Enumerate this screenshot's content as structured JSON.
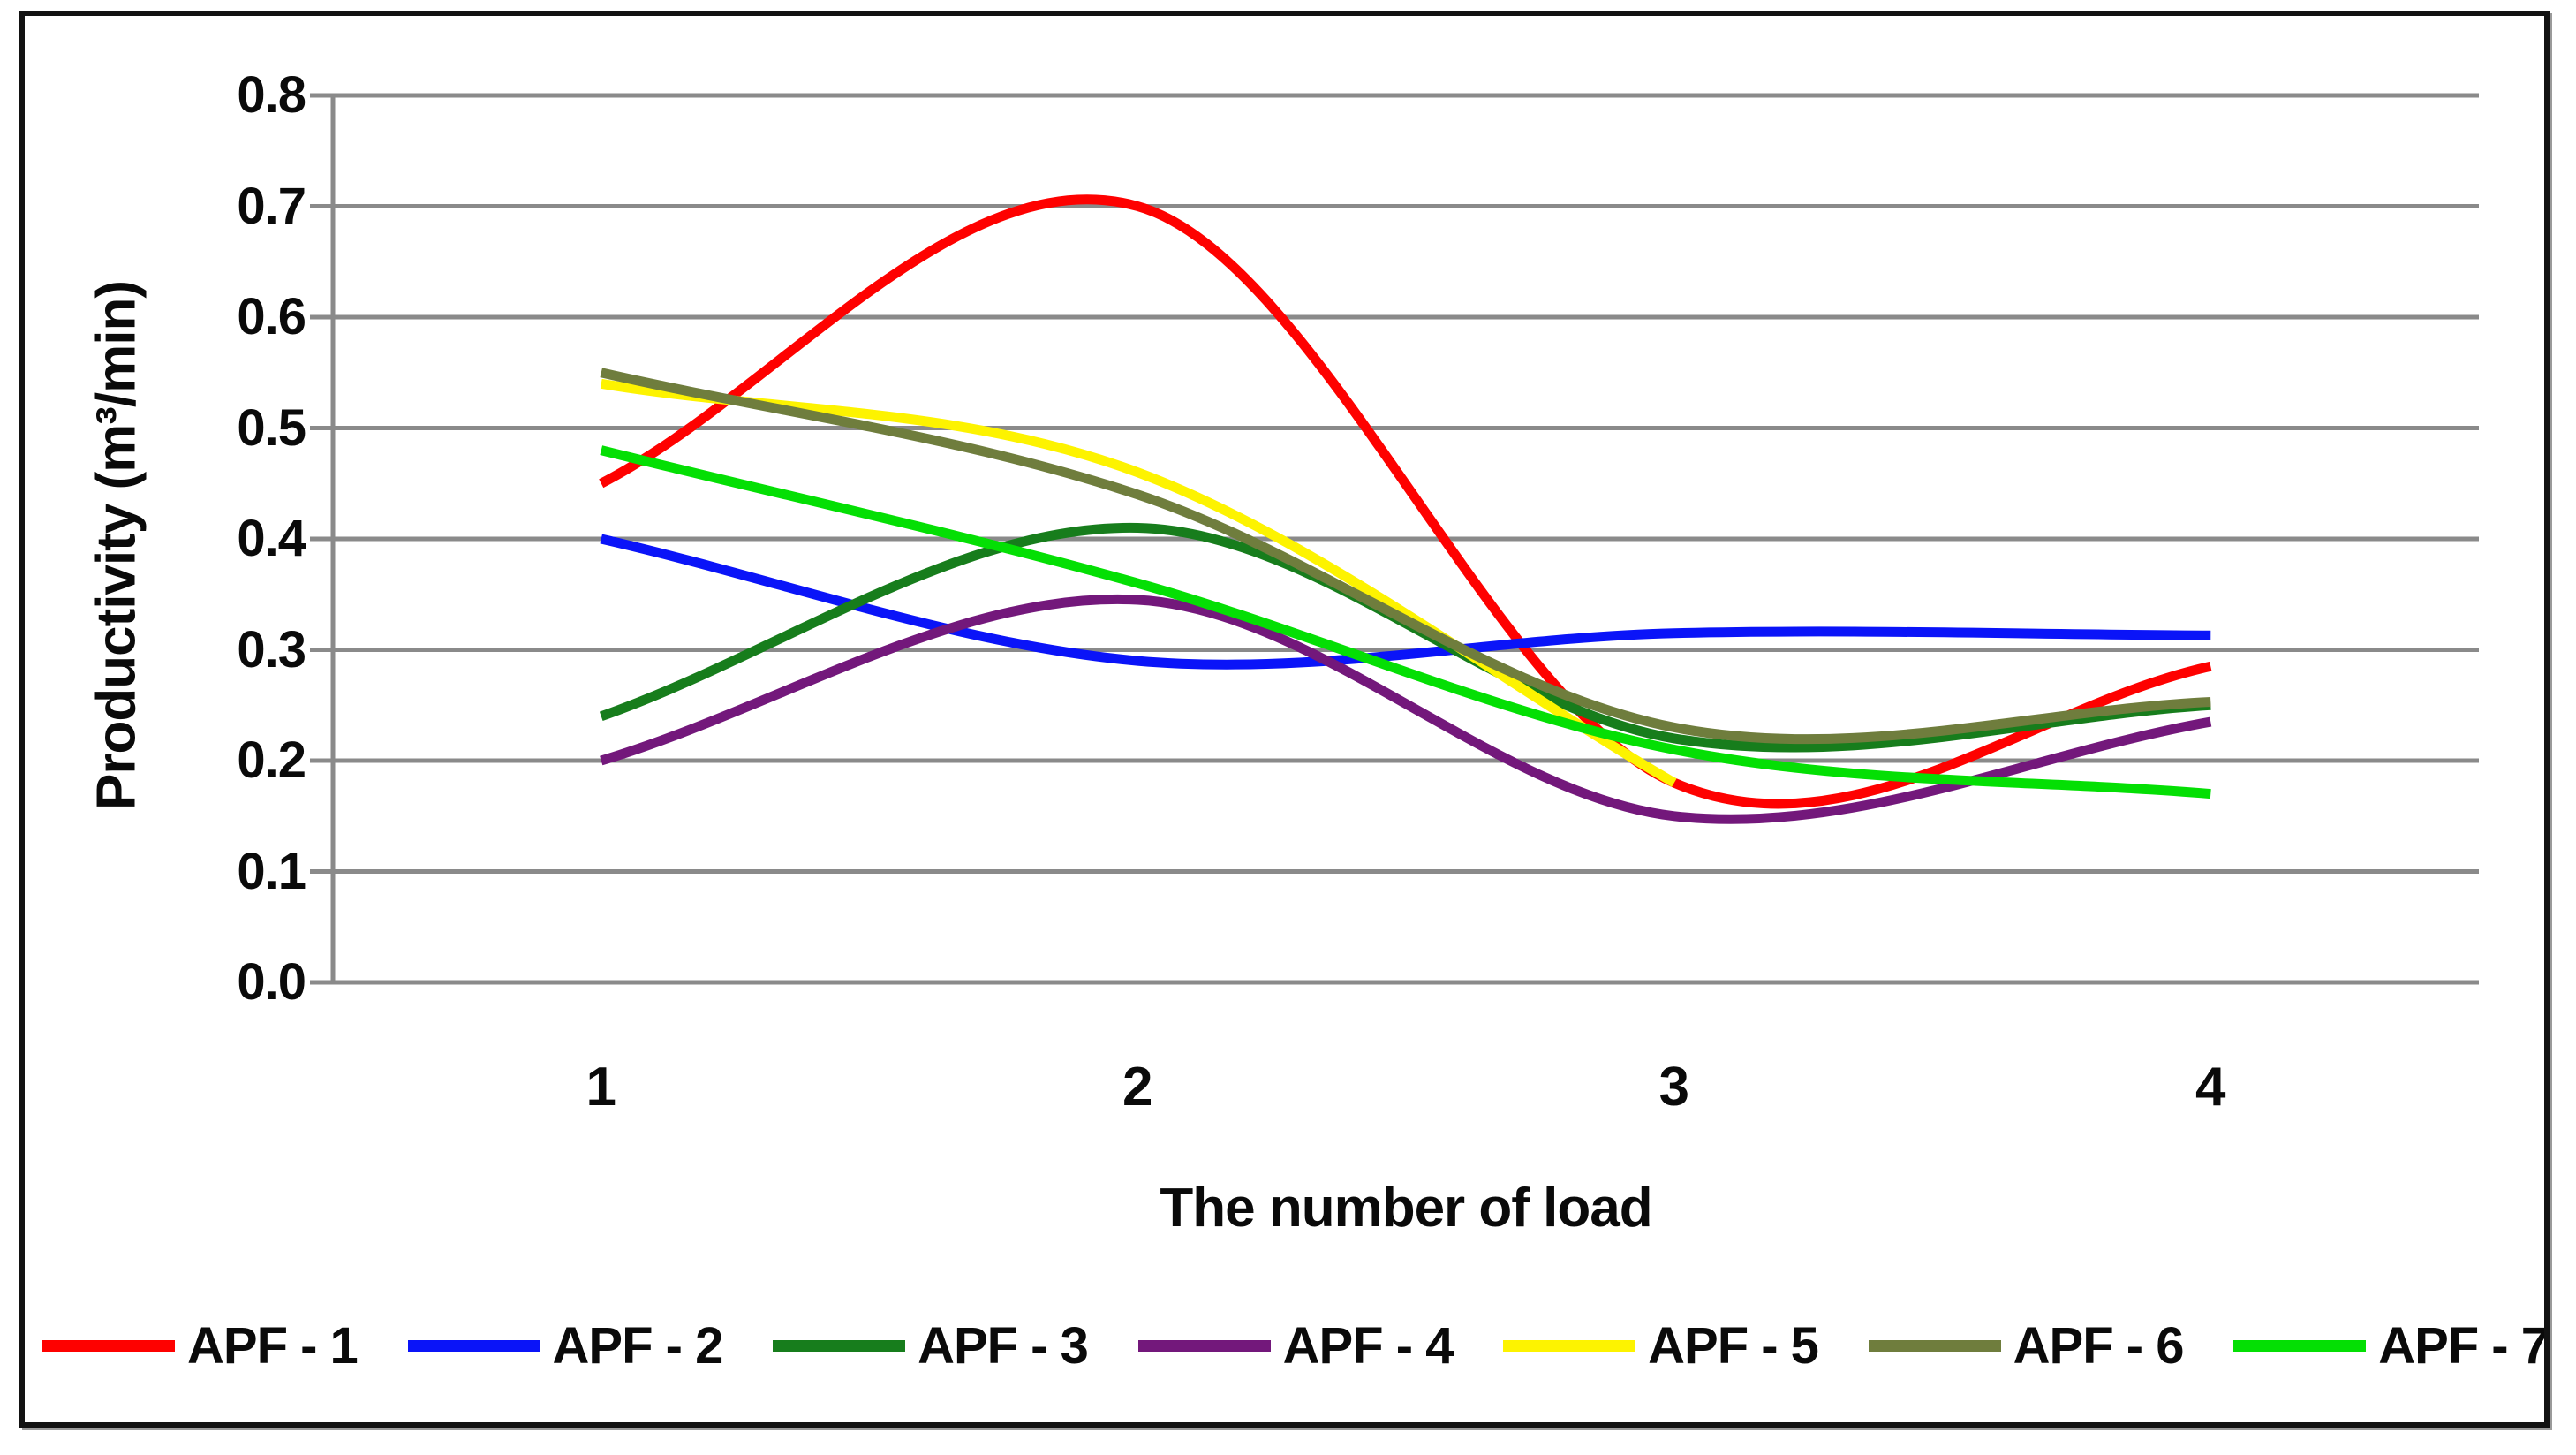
{
  "chart_data": {
    "type": "line",
    "title": "",
    "xlabel": "The number of load",
    "ylabel": "Productivity (m³/min)",
    "x": [
      1,
      2,
      3,
      4
    ],
    "x_tick_labels": [
      "1",
      "2",
      "3",
      "4"
    ],
    "y_tick_labels": [
      "0.0",
      "0.1",
      "0.2",
      "0.3",
      "0.4",
      "0.5",
      "0.6",
      "0.7",
      "0.8"
    ],
    "ylim": [
      0.0,
      0.8
    ],
    "y_step": 0.1,
    "grid": "horizontal",
    "legend_position": "bottom",
    "smoothing": "excel-smooth",
    "axis_color": "#8a8a8a",
    "text_color": "#0a0a0a",
    "series": [
      {
        "name": "APF - 1",
        "color": "#fe0100",
        "values": [
          0.45,
          0.7,
          0.18,
          0.285
        ]
      },
      {
        "name": "APF - 2",
        "color": "#0a14f8",
        "values": [
          0.4,
          0.29,
          0.315,
          0.313
        ]
      },
      {
        "name": "APF - 3",
        "color": "#177d1c",
        "values": [
          0.24,
          0.41,
          0.22,
          0.25
        ]
      },
      {
        "name": "APF - 4",
        "color": "#73187b",
        "values": [
          0.2,
          0.345,
          0.15,
          0.235
        ]
      },
      {
        "name": "APF - 5",
        "color": "#fdf300",
        "values": [
          0.54,
          0.46,
          0.18
        ]
      },
      {
        "name": "APF - 6",
        "color": "#6f7d3d",
        "values": [
          0.55,
          0.44,
          0.23,
          0.253
        ]
      },
      {
        "name": "APF - 7",
        "color": "#04df04",
        "values": [
          0.48,
          0.36,
          0.21,
          0.17
        ]
      }
    ]
  }
}
